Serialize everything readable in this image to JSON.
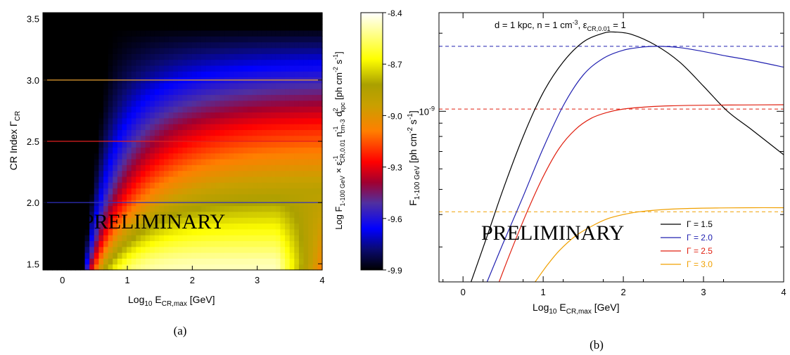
{
  "panels": {
    "a": {
      "caption": "(a)",
      "watermark": "PRELIMINARY",
      "xlabel_main": "Log",
      "xlabel_sub": "10",
      "xlabel_main2": " E",
      "xlabel_sub2": "CR,max",
      "xlabel_unit": " [GeV]",
      "ylabel_main": "CR Index Γ",
      "ylabel_sub": "CR",
      "colorbar_label": "Log F1-100 GeV × εCR,0.01^-1 ncm-3^-1 d²kpc [ph cm⁻² s⁻¹]",
      "colorbar_ticks": [
        "-8.4",
        "-8.7",
        "-9.0",
        "-9.3",
        "-9.6",
        "-9.9"
      ]
    },
    "b": {
      "caption": "(b)",
      "watermark": "PRELIMINARY",
      "annotation": "d = 1 kpc, n = 1 cm-3, εCR,0.01 = 1",
      "xlabel": "Log10 ECR,max [GeV]",
      "ylabel": "F1-100 GeV [ph cm-2 s-1]",
      "ytick_label": "10-9"
    }
  },
  "chart_data": [
    {
      "type": "heatmap",
      "panel": "a",
      "x": {
        "label": "Log10 ECR,max [GeV]",
        "range": [
          -0.3,
          4.0
        ],
        "ticks": [
          0,
          1,
          2,
          3,
          4
        ]
      },
      "y": {
        "label": "CR Index ΓCR",
        "range": [
          1.45,
          3.55
        ],
        "ticks": [
          1.5,
          2.0,
          2.5,
          3.0,
          3.5
        ]
      },
      "colorscale": {
        "label": "Log F1-100 GeV",
        "range": [
          -9.9,
          -8.4
        ],
        "ticks": [
          -8.4,
          -8.7,
          -9.0,
          -9.3,
          -9.6,
          -9.9
        ],
        "colormap": "heat (black-blue-red-orange-yellow-white)"
      },
      "reference_lines": [
        {
          "gamma": 3.0,
          "color": "#e8a030"
        },
        {
          "gamma": 2.5,
          "color": "#e02020"
        },
        {
          "gamma": 2.0,
          "color": "#3030c0"
        }
      ]
    },
    {
      "type": "line",
      "panel": "b",
      "x": {
        "label": "Log10 ECR,max [GeV]",
        "range": [
          -0.3,
          4.0
        ],
        "ticks": [
          0,
          1,
          2,
          3,
          4
        ]
      },
      "y": {
        "label": "F1-100 GeV [ph cm-2 s-1]",
        "scale": "log",
        "range": [
          2.2e-10,
          2.4e-09
        ],
        "labeled_ticks": [
          "10-9"
        ]
      },
      "series": [
        {
          "name": "Γ = 1.5",
          "color": "#000000",
          "x": [
            0.1,
            0.3,
            0.5,
            0.75,
            1.0,
            1.25,
            1.5,
            1.75,
            1.9,
            2.1,
            2.4,
            2.7,
            3.0,
            3.3,
            3.6,
            4.0
          ],
          "y": [
            2.2e-10,
            3.3e-10,
            5e-10,
            8e-10,
            1.18e-09,
            1.55e-09,
            1.85e-09,
            2e-09,
            2.02e-09,
            1.98e-09,
            1.8e-09,
            1.55e-09,
            1.25e-09,
            1e-09,
            8.5e-10,
            6.8e-10
          ]
        },
        {
          "name": "Γ = 2.0",
          "color": "#2020b0",
          "x": [
            0.3,
            0.5,
            0.75,
            1.0,
            1.25,
            1.5,
            1.75,
            2.0,
            2.25,
            2.45,
            2.7,
            3.0,
            3.3,
            3.6,
            4.0
          ],
          "y": [
            2.2e-10,
            3.1e-10,
            4.7e-10,
            7.2e-10,
            1.05e-09,
            1.38e-09,
            1.6e-09,
            1.72e-09,
            1.77e-09,
            1.78e-09,
            1.76e-09,
            1.7e-09,
            1.63e-09,
            1.57e-09,
            1.48e-09
          ]
        },
        {
          "name": "Γ = 2.5",
          "color": "#e02010",
          "x": [
            0.45,
            0.6,
            0.8,
            1.0,
            1.2,
            1.4,
            1.6,
            1.8,
            2.0,
            2.3,
            2.6,
            3.0,
            3.5,
            4.0
          ],
          "y": [
            2.2e-10,
            2.9e-10,
            4.1e-10,
            5.6e-10,
            7.2e-10,
            8.5e-10,
            9.4e-10,
            9.9e-10,
            1.02e-09,
            1.04e-09,
            1.05e-09,
            1.055e-09,
            1.058e-09,
            1.06e-09
          ]
        },
        {
          "name": "Γ = 3.0",
          "color": "#f0a000",
          "x": [
            0.9,
            1.05,
            1.2,
            1.4,
            1.6,
            1.8,
            2.0,
            2.2,
            2.5,
            2.8,
            3.2,
            3.6,
            4.0
          ],
          "y": [
            2.2e-10,
            2.55e-10,
            2.9e-10,
            3.3e-10,
            3.6e-10,
            3.85e-10,
            4e-10,
            4.1e-10,
            4.18e-10,
            4.22e-10,
            4.24e-10,
            4.25e-10,
            4.25e-10
          ]
        }
      ],
      "asymptotes": [
        {
          "series": "Γ = 1.5",
          "y": 1.78e-09,
          "style": "dashed",
          "color": "#2020b0"
        },
        {
          "series": "Γ = 2.5",
          "y": 1.02e-09,
          "style": "dashed",
          "color": "#e02010"
        },
        {
          "series": "Γ = 3.0",
          "y": 4.1e-10,
          "style": "dashed",
          "color": "#f0a000"
        }
      ],
      "legend": {
        "placement": "bottom-right",
        "entries": [
          "Γ = 1.5",
          "Γ = 2.0",
          "Γ = 2.5",
          "Γ = 3.0"
        ]
      }
    }
  ]
}
